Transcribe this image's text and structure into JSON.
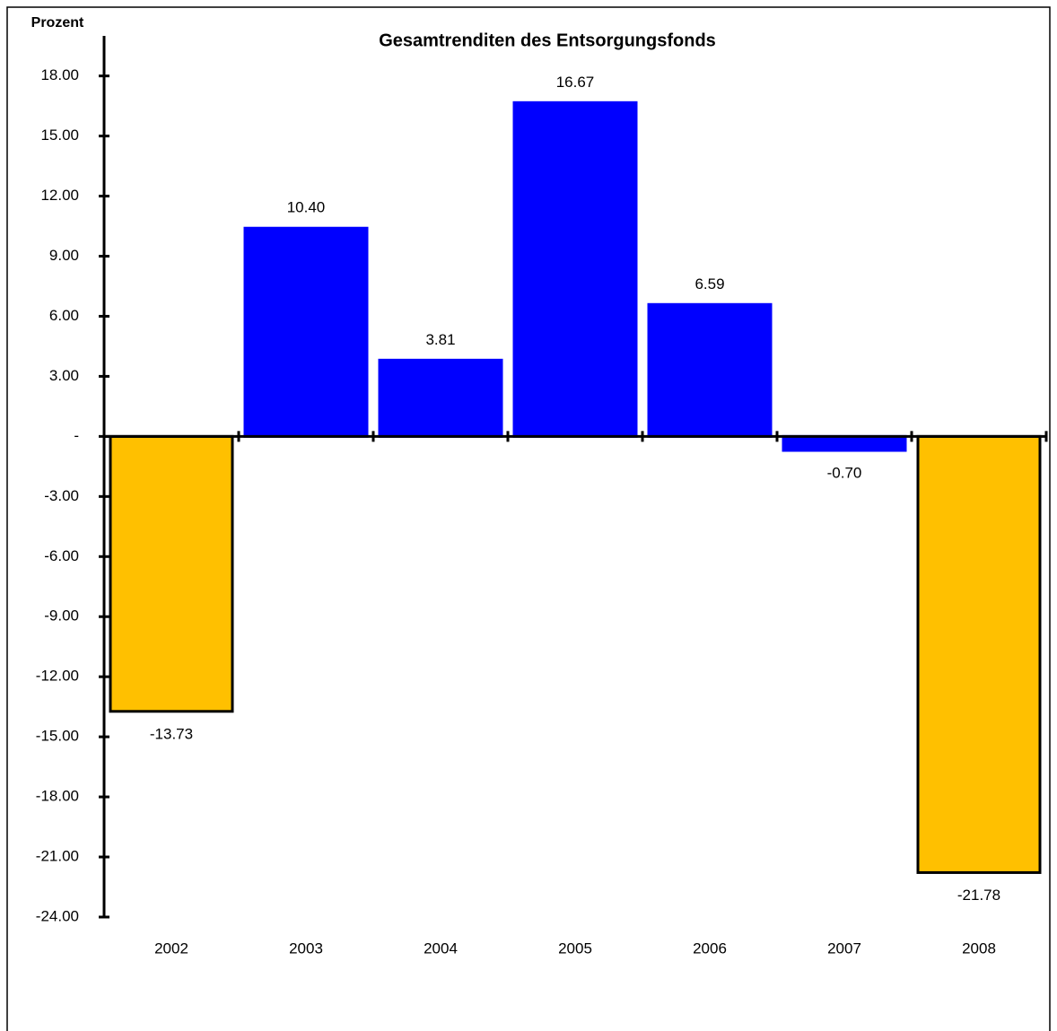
{
  "chart_data": {
    "type": "bar",
    "title": "Gesamtrenditen des Entsorgungsfonds",
    "y_label": "Prozent",
    "categories": [
      "2002",
      "2003",
      "2004",
      "2005",
      "2006",
      "2007",
      "2008"
    ],
    "values": [
      -13.73,
      10.4,
      3.81,
      16.67,
      6.59,
      -0.7,
      -21.78
    ],
    "value_labels": [
      "-13.73",
      "10.40",
      "3.81",
      "16.67",
      "6.59",
      "-0.70",
      "-21.78"
    ],
    "colors": [
      "#ffc000",
      "#0000ff",
      "#0000ff",
      "#0000ff",
      "#0000ff",
      "#0000ff",
      "#ffc000"
    ],
    "edge_colors": [
      "#000000",
      "#0000ff",
      "#0000ff",
      "#0000ff",
      "#0000ff",
      "#0000ff",
      "#000000"
    ],
    "ylim": [
      -24,
      20
    ],
    "yticks": [
      {
        "value": 18,
        "label": "18.00"
      },
      {
        "value": 15,
        "label": "15.00"
      },
      {
        "value": 12,
        "label": "12.00"
      },
      {
        "value": 9,
        "label": "9.00"
      },
      {
        "value": 6,
        "label": "6.00"
      },
      {
        "value": 3,
        "label": "3.00"
      },
      {
        "value": 0,
        "label": "-"
      },
      {
        "value": -3,
        "label": "-3.00"
      },
      {
        "value": -6,
        "label": "-6.00"
      },
      {
        "value": -9,
        "label": "-9.00"
      },
      {
        "value": -12,
        "label": "-12.00"
      },
      {
        "value": -15,
        "label": "-15.00"
      },
      {
        "value": -18,
        "label": "-18.00"
      },
      {
        "value": -21,
        "label": "-21.00"
      },
      {
        "value": -24,
        "label": "-24.00"
      }
    ],
    "grid": false
  }
}
